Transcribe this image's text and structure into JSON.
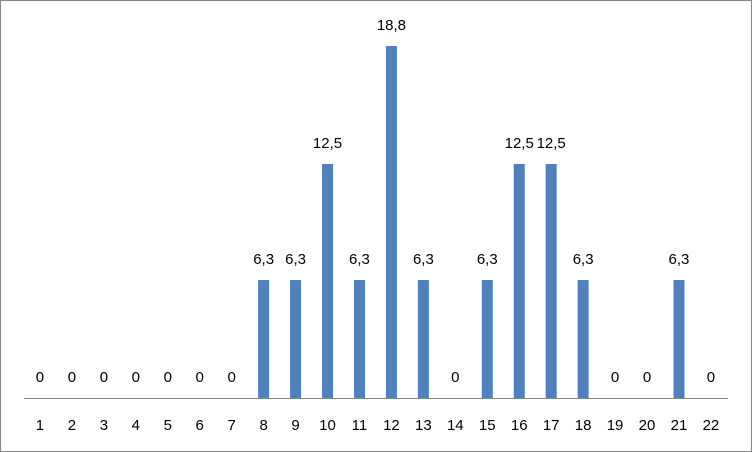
{
  "chart_data": {
    "type": "bar",
    "categories": [
      "1",
      "2",
      "3",
      "4",
      "5",
      "6",
      "7",
      "8",
      "9",
      "10",
      "11",
      "12",
      "13",
      "14",
      "15",
      "16",
      "17",
      "18",
      "19",
      "20",
      "21",
      "22"
    ],
    "values": [
      0,
      0,
      0,
      0,
      0,
      0,
      0,
      6.3,
      6.3,
      12.5,
      6.3,
      18.8,
      6.3,
      0,
      6.3,
      12.5,
      12.5,
      6.3,
      0,
      0,
      6.3,
      0
    ],
    "value_labels": [
      "0",
      "0",
      "0",
      "0",
      "0",
      "0",
      "0",
      "6,3",
      "6,3",
      "12,5",
      "6,3",
      "18,8",
      "6,3",
      "0",
      "6,3",
      "12,5",
      "12,5",
      "6,3",
      "0",
      "0",
      "6,3",
      "0"
    ],
    "color": "#4f81bd"
  }
}
